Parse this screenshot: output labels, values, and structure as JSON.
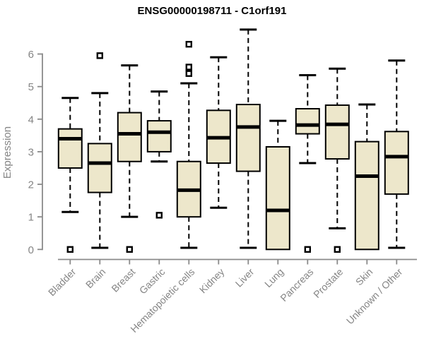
{
  "chart_data": {
    "type": "boxplot",
    "title": "ENSG00000198711 - C1orf191",
    "ylabel": "Expression",
    "xlabel": "",
    "ylim": [
      0,
      6.9
    ],
    "yticks": [
      0,
      1,
      2,
      3,
      4,
      5,
      6
    ],
    "grid": false,
    "legend": "none",
    "categories": [
      "Bladder",
      "Brain",
      "Breast",
      "Gastric",
      "Hematopoietic cells",
      "Kidney",
      "Liver",
      "Lung",
      "Pancreas",
      "Prostate",
      "Skin",
      "Unknown / Other"
    ],
    "series": [
      {
        "category": "Bladder",
        "whisker_low": 1.15,
        "q1": 2.5,
        "median": 3.4,
        "q3": 3.7,
        "whisker_high": 4.65,
        "outliers": [
          0
        ]
      },
      {
        "category": "Brain",
        "whisker_low": 0.05,
        "q1": 1.75,
        "median": 2.65,
        "q3": 3.25,
        "whisker_high": 4.8,
        "outliers": [
          5.95
        ]
      },
      {
        "category": "Breast",
        "whisker_low": 1.0,
        "q1": 2.7,
        "median": 3.55,
        "q3": 4.2,
        "whisker_high": 5.65,
        "outliers": [
          0
        ]
      },
      {
        "category": "Gastric",
        "whisker_low": 2.7,
        "q1": 3.0,
        "median": 3.6,
        "q3": 3.95,
        "whisker_high": 4.85,
        "outliers": [
          1.05
        ]
      },
      {
        "category": "Hematopoietic cells",
        "whisker_low": 0.05,
        "q1": 1.0,
        "median": 1.82,
        "q3": 2.7,
        "whisker_high": 5.1,
        "outliers": [
          5.4,
          5.6,
          6.3
        ]
      },
      {
        "category": "Kidney",
        "whisker_low": 1.28,
        "q1": 2.65,
        "median": 3.43,
        "q3": 4.27,
        "whisker_high": 5.9,
        "outliers": []
      },
      {
        "category": "Liver",
        "whisker_low": 0.05,
        "q1": 2.4,
        "median": 3.76,
        "q3": 4.45,
        "whisker_high": 6.75,
        "outliers": []
      },
      {
        "category": "Lung",
        "whisker_low": 0.0,
        "q1": 0.0,
        "median": 1.2,
        "q3": 3.15,
        "whisker_high": 3.95,
        "outliers": []
      },
      {
        "category": "Pancreas",
        "whisker_low": 2.65,
        "q1": 3.55,
        "median": 3.82,
        "q3": 4.32,
        "whisker_high": 5.35,
        "outliers": [
          0
        ]
      },
      {
        "category": "Prostate",
        "whisker_low": 0.65,
        "q1": 2.78,
        "median": 3.84,
        "q3": 4.43,
        "whisker_high": 5.55,
        "outliers": [
          0
        ]
      },
      {
        "category": "Skin",
        "whisker_low": 0.0,
        "q1": 0.0,
        "median": 2.25,
        "q3": 3.31,
        "whisker_high": 4.45,
        "outliers": []
      },
      {
        "category": "Unknown / Other",
        "whisker_low": 0.05,
        "q1": 1.7,
        "median": 2.85,
        "q3": 3.62,
        "whisker_high": 5.8,
        "outliers": []
      }
    ],
    "colors": {
      "box_fill": "#EDE7CB",
      "box_border": "#000000",
      "median": "#000000",
      "whisker": "#000000",
      "outlier": "#000000",
      "axis": "#8A8A8A",
      "tick_text": "#858585",
      "title_text": "#000000",
      "background": "#FFFFFF"
    }
  }
}
